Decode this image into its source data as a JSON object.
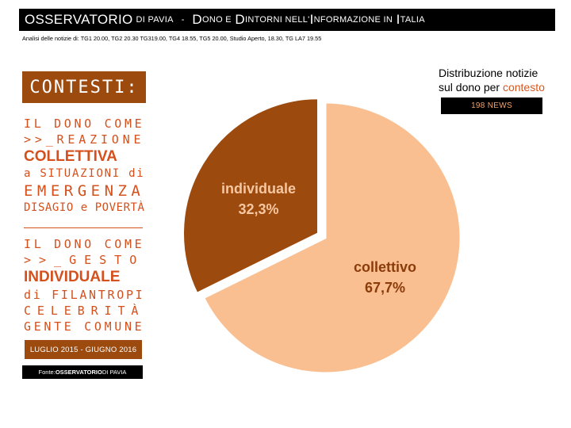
{
  "header": {
    "big1": "OSSERVATORIO",
    "small1": "DI PAVIA",
    "dash": "-",
    "big2": "D",
    "small2": "ONO E",
    "big3": "D",
    "small3": "INTORNI NELL'",
    "big4": "I",
    "small4": "NFORMAZIONE IN",
    "big5": "I",
    "small5": "TALIA"
  },
  "subtitle": "Analisi delle notizie di: TG1 20.00, TG2 20.30 TG319.00, TG4 18.55, TG5 20.00, Studio Aperto, 18.30, TG LA7 19.55",
  "sidebar": {
    "contesti_label": "CONTESTI:",
    "group1": [
      {
        "text": "IL DONO COME",
        "size": 15,
        "bold": false
      },
      {
        "text": ">>_REAZIONE",
        "size": 15,
        "bold": false
      },
      {
        "text": "COLLETTIVA",
        "size": 19,
        "bold": true
      },
      {
        "text": "a SITUAZIONI di",
        "size": 14,
        "bold": false
      },
      {
        "text": "EMERGENZA",
        "size": 19,
        "bold": false
      },
      {
        "text": "DISAGIO e POVERTÀ",
        "size": 14,
        "bold": false
      }
    ],
    "group2": [
      {
        "text": "IL DONO COME",
        "size": 15,
        "bold": false
      },
      {
        "text": ">>_GESTO",
        "size": 15,
        "bold": false
      },
      {
        "text": "INDIVIDUALE",
        "size": 19,
        "bold": true
      },
      {
        "text": "di FILANTROPI",
        "size": 15,
        "bold": false
      },
      {
        "text": "CELEBRITÀ",
        "size": 15,
        "bold": false
      },
      {
        "text": "GENTE COMUNE",
        "size": 15,
        "bold": false
      }
    ],
    "period": "LUGLIO 2015 - GIUGNO 2016",
    "fonte_label": "Fonte: ",
    "fonte_bold": "OSSERVATORIO",
    "fonte_rest": " DI PAVIA"
  },
  "distribution": {
    "line1": "Distribuzione notizie",
    "line2_prefix": "sul dono per ",
    "line2_accent": "contesto",
    "news_badge": "198 NEWS"
  },
  "chart_data": {
    "type": "pie",
    "slices": [
      {
        "label": "collettivo",
        "value": 67.7,
        "display": "67,7%",
        "color": "#f9bf91",
        "text_color": "#8b3c0a"
      },
      {
        "label": "individuale",
        "value": 32.3,
        "display": "32,3%",
        "color": "#9c4a0e",
        "text_color": "#f6c7a0",
        "exploded": true
      }
    ]
  },
  "colors": {
    "accent": "#d4501c",
    "brown": "#9c4a0e",
    "peach": "#f9bf91"
  }
}
